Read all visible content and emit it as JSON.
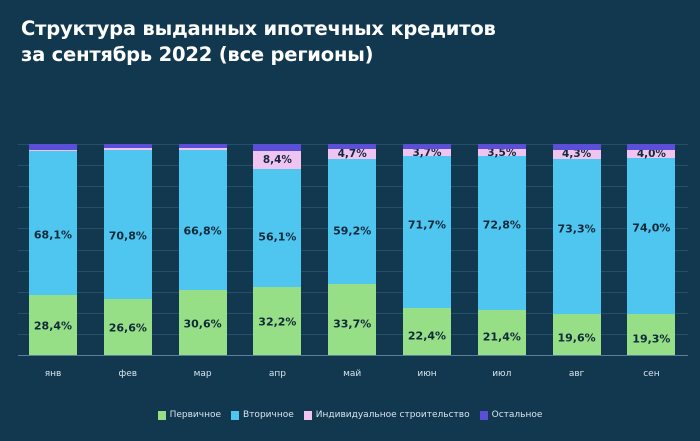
{
  "title_lines": [
    "Структура выданных ипотечных кредитов",
    "за сентябрь 2022 (все регионы)"
  ],
  "colors": {
    "primary": "#96df87",
    "secondary": "#4fc6f0",
    "individual": "#f0c4f0",
    "other": "#5a4fd6",
    "background": "#12384f"
  },
  "legend": [
    {
      "key": "primary",
      "label": "Первичное"
    },
    {
      "key": "secondary",
      "label": "Вторичное"
    },
    {
      "key": "individual",
      "label": "Индивидуальное строительство"
    },
    {
      "key": "other",
      "label": "Остальное"
    }
  ],
  "chart_data": {
    "type": "bar",
    "stacked": true,
    "title": "Структура выданных ипотечных кредитов за сентябрь 2022 (все регионы)",
    "xlabel": "",
    "ylabel": "",
    "ylim": [
      0,
      100
    ],
    "grid": true,
    "legend_position": "bottom",
    "categories": [
      "янв",
      "фев",
      "мар",
      "апр",
      "май",
      "июн",
      "июл",
      "авг",
      "сен"
    ],
    "series": [
      {
        "name": "Первичное",
        "values": [
          28.4,
          26.6,
          30.6,
          32.2,
          33.7,
          22.4,
          21.4,
          19.6,
          19.3
        ],
        "labels": [
          "28,4%",
          "26,6%",
          "30,6%",
          "32,2%",
          "33,7%",
          "22,4%",
          "21,4%",
          "19,6%",
          "19,3%"
        ]
      },
      {
        "name": "Вторичное",
        "values": [
          68.1,
          70.8,
          66.8,
          56.1,
          59.2,
          71.7,
          72.8,
          73.3,
          74.0
        ],
        "labels": [
          "68,1%",
          "70,8%",
          "66,8%",
          "56,1%",
          "59,2%",
          "71,7%",
          "72,8%",
          "73,3%",
          "74,0%"
        ]
      },
      {
        "name": "Индивидуальное строительство",
        "values": [
          0.9,
          0.5,
          0.8,
          8.4,
          4.7,
          3.7,
          3.5,
          4.3,
          4.0
        ],
        "labels": [
          "",
          "",
          "",
          "8,4%",
          "4,7%",
          "3,7%",
          "3,5%",
          "4,3%",
          "4,0%"
        ]
      },
      {
        "name": "Остальное",
        "values": [
          2.6,
          2.1,
          1.8,
          3.3,
          2.4,
          2.2,
          2.3,
          2.8,
          2.7
        ],
        "labels": [
          "",
          "",
          "",
          "",
          "",
          "",
          "",
          "",
          ""
        ]
      }
    ]
  }
}
